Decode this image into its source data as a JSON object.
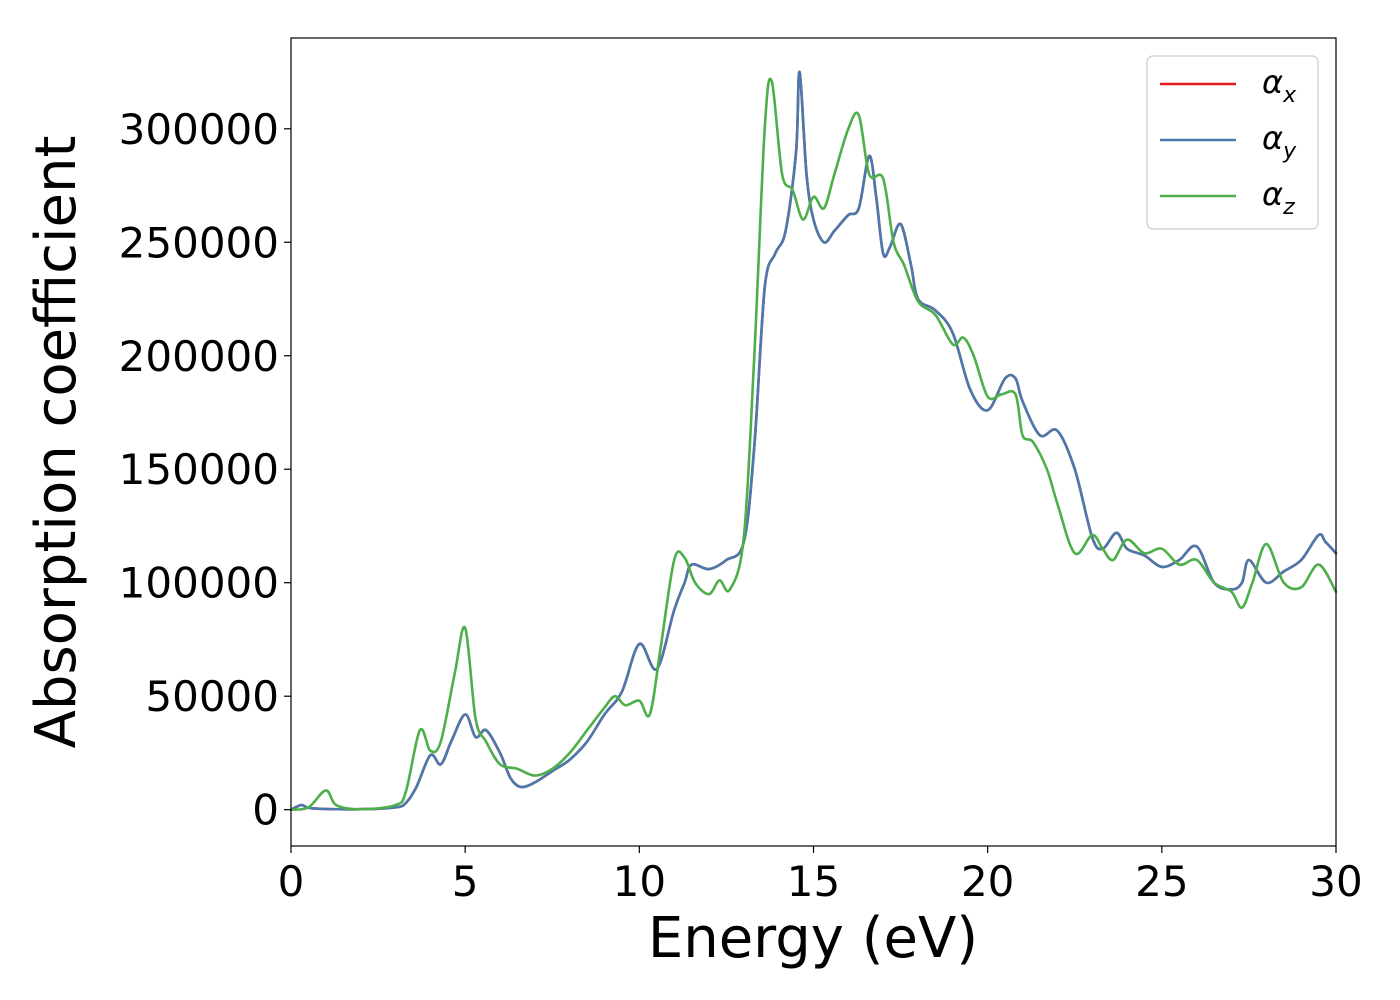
{
  "chart_data": {
    "type": "line",
    "xlabel": "Energy (eV)",
    "ylabel": "Absorption coefficient",
    "xlim": [
      0,
      30
    ],
    "ylim": [
      -16000,
      340000
    ],
    "x_ticks": [
      0,
      5,
      10,
      15,
      20,
      25,
      30
    ],
    "x_tick_labels": [
      "0",
      "5",
      "10",
      "15",
      "20",
      "25",
      "30"
    ],
    "y_ticks": [
      0,
      50000,
      100000,
      150000,
      200000,
      250000,
      300000
    ],
    "y_tick_labels": [
      "0",
      "50000",
      "100000",
      "150000",
      "200000",
      "250000",
      "300000"
    ],
    "grid": false,
    "legend_position": "top-right",
    "series": [
      {
        "name": "α",
        "subscript": "x",
        "color": "#e41a1c",
        "x": [
          0,
          0.3,
          0.5,
          1,
          2,
          3,
          3.3,
          3.6,
          4,
          4.3,
          4.6,
          5,
          5.3,
          5.6,
          6,
          6.3,
          6.6,
          7,
          7.5,
          8,
          8.5,
          9,
          9.5,
          10,
          10.5,
          11,
          11.3,
          11.5,
          12,
          12.5,
          13,
          13.3,
          13.6,
          13.9,
          14.2,
          14.5,
          14.6,
          14.8,
          15,
          15.3,
          15.6,
          16,
          16.3,
          16.6,
          16.8,
          17,
          17.2,
          17.5,
          17.8,
          18,
          18.5,
          19,
          19.5,
          20,
          20.5,
          20.8,
          21,
          21.5,
          22,
          22.5,
          23,
          23.3,
          23.7,
          24,
          24.5,
          25,
          25.5,
          26,
          26.5,
          27,
          27.3,
          27.5,
          28,
          28.5,
          29,
          29.5,
          29.7,
          30
        ],
        "y": [
          0,
          2000,
          800,
          300,
          200,
          1000,
          3000,
          10000,
          24000,
          20000,
          30000,
          42000,
          32000,
          35000,
          25000,
          14000,
          10000,
          12000,
          17000,
          22000,
          30000,
          42000,
          52000,
          73000,
          62000,
          88000,
          100000,
          108000,
          106000,
          110000,
          118000,
          160000,
          230000,
          245000,
          255000,
          290000,
          325000,
          280000,
          260000,
          250000,
          255000,
          262000,
          265000,
          288000,
          270000,
          245000,
          248000,
          258000,
          240000,
          225000,
          220000,
          210000,
          185000,
          176000,
          190000,
          190000,
          180000,
          165000,
          167000,
          150000,
          120000,
          115000,
          122000,
          115000,
          112000,
          107000,
          110000,
          116000,
          100000,
          97000,
          100000,
          110000,
          100000,
          105000,
          110000,
          121000,
          118000,
          113000
        ]
      },
      {
        "name": "α",
        "subscript": "y",
        "color": "#4a7aad",
        "x": [
          0,
          0.3,
          0.5,
          1,
          2,
          3,
          3.3,
          3.6,
          4,
          4.3,
          4.6,
          5,
          5.3,
          5.6,
          6,
          6.3,
          6.6,
          7,
          7.5,
          8,
          8.5,
          9,
          9.5,
          10,
          10.5,
          11,
          11.3,
          11.5,
          12,
          12.5,
          13,
          13.3,
          13.6,
          13.9,
          14.2,
          14.5,
          14.6,
          14.8,
          15,
          15.3,
          15.6,
          16,
          16.3,
          16.6,
          16.8,
          17,
          17.2,
          17.5,
          17.8,
          18,
          18.5,
          19,
          19.5,
          20,
          20.5,
          20.8,
          21,
          21.5,
          22,
          22.5,
          23,
          23.3,
          23.7,
          24,
          24.5,
          25,
          25.5,
          26,
          26.5,
          27,
          27.3,
          27.5,
          28,
          28.5,
          29,
          29.5,
          29.7,
          30
        ],
        "y": [
          0,
          2000,
          800,
          300,
          200,
          1000,
          3000,
          10000,
          24000,
          20000,
          30000,
          42000,
          32000,
          35000,
          25000,
          14000,
          10000,
          12000,
          17000,
          22000,
          30000,
          42000,
          52000,
          73000,
          62000,
          88000,
          100000,
          108000,
          106000,
          110000,
          118000,
          160000,
          230000,
          245000,
          255000,
          290000,
          325000,
          280000,
          260000,
          250000,
          255000,
          262000,
          265000,
          288000,
          270000,
          245000,
          248000,
          258000,
          240000,
          225000,
          220000,
          210000,
          185000,
          176000,
          190000,
          190000,
          180000,
          165000,
          167000,
          150000,
          120000,
          115000,
          122000,
          115000,
          112000,
          107000,
          110000,
          116000,
          100000,
          97000,
          100000,
          110000,
          100000,
          105000,
          110000,
          121000,
          118000,
          113000
        ]
      },
      {
        "name": "α",
        "subscript": "z",
        "color": "#4daf4a",
        "x": [
          0,
          0.5,
          1,
          1.3,
          2,
          3,
          3.3,
          3.7,
          4,
          4.3,
          4.7,
          5,
          5.3,
          5.6,
          6,
          6.5,
          7,
          7.5,
          8,
          8.5,
          9,
          9.3,
          9.6,
          10,
          10.3,
          10.6,
          11,
          11.3,
          11.6,
          12,
          12.3,
          12.6,
          13,
          13.3,
          13.6,
          13.8,
          14.1,
          14.4,
          14.7,
          15,
          15.3,
          15.6,
          16,
          16.3,
          16.6,
          17,
          17.3,
          17.6,
          18,
          18.5,
          19,
          19.3,
          19.6,
          20,
          20.4,
          20.8,
          21,
          21.3,
          21.7,
          22,
          22.5,
          23,
          23.3,
          23.6,
          24,
          24.5,
          25,
          25.5,
          26,
          26.5,
          27,
          27.3,
          27.6,
          28,
          28.5,
          29,
          29.5,
          30
        ],
        "y": [
          0,
          1000,
          8500,
          2000,
          200,
          2000,
          8000,
          35000,
          26000,
          30000,
          60000,
          80000,
          40000,
          30000,
          20000,
          18000,
          15000,
          18000,
          25000,
          35000,
          45000,
          50000,
          46000,
          48000,
          42000,
          70000,
          110000,
          111000,
          100000,
          95000,
          101000,
          97000,
          120000,
          200000,
          300000,
          321000,
          280000,
          273000,
          260000,
          270000,
          265000,
          280000,
          300000,
          306000,
          280000,
          278000,
          250000,
          240000,
          224000,
          218000,
          205000,
          208000,
          200000,
          182000,
          183000,
          183000,
          165000,
          162000,
          150000,
          135000,
          113000,
          121000,
          115000,
          110000,
          119000,
          113000,
          115000,
          108000,
          110000,
          100000,
          96000,
          89000,
          100000,
          117000,
          100000,
          98000,
          108000,
          96000
        ]
      }
    ]
  }
}
